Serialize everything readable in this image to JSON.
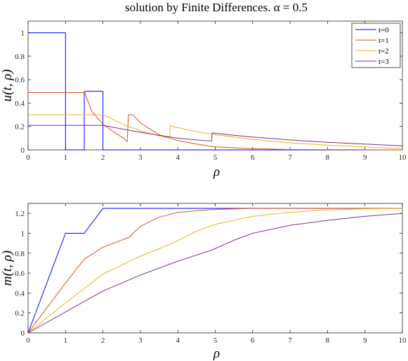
{
  "title": "solution by Finite Differences.  α = 0.5",
  "chart_data": [
    {
      "type": "line",
      "xlabel": "ρ",
      "ylabel": "u(t, ρ)",
      "xlim": [
        0,
        10
      ],
      "ylim": [
        0,
        1.1
      ],
      "xticks": [
        0,
        1,
        2,
        3,
        4,
        5,
        6,
        7,
        8,
        9,
        10
      ],
      "yticks": [
        0,
        0.2,
        0.4,
        0.6,
        0.8,
        1
      ],
      "legend_position": "top-right",
      "series": [
        {
          "name": "t=0",
          "color": "#0000ff",
          "points": [
            [
              0,
              1
            ],
            [
              1,
              1
            ],
            [
              1,
              0
            ],
            [
              1.5,
              0
            ],
            [
              1.5,
              0.5
            ],
            [
              2,
              0.5
            ],
            [
              2,
              0
            ],
            [
              10,
              0
            ]
          ]
        },
        {
          "name": "t=1",
          "color": "#d95319",
          "points": [
            [
              0,
              0.49
            ],
            [
              1.5,
              0.49
            ],
            [
              1.5,
              0.5
            ],
            [
              1.7,
              0.33
            ],
            [
              2.0,
              0.22
            ],
            [
              2.3,
              0.15
            ],
            [
              2.55,
              0.1
            ],
            [
              2.65,
              0.07
            ],
            [
              2.68,
              0.3
            ],
            [
              2.8,
              0.3
            ],
            [
              3.0,
              0.23
            ],
            [
              3.5,
              0.13
            ],
            [
              4.0,
              0.08
            ],
            [
              4.5,
              0.05
            ],
            [
              5.0,
              0.025
            ],
            [
              6.0,
              0.01
            ],
            [
              7.0,
              0.003
            ],
            [
              10,
              0
            ]
          ]
        },
        {
          "name": "t=2",
          "color": "#edb120",
          "points": [
            [
              0,
              0.3
            ],
            [
              2.0,
              0.3
            ],
            [
              2.2,
              0.27
            ],
            [
              2.6,
              0.21
            ],
            [
              2.95,
              0.17
            ],
            [
              3.0,
              0.16
            ],
            [
              3.5,
              0.12
            ],
            [
              3.78,
              0.1
            ],
            [
              3.8,
              0.205
            ],
            [
              4.0,
              0.19
            ],
            [
              4.5,
              0.155
            ],
            [
              5,
              0.13
            ],
            [
              6,
              0.09
            ],
            [
              7,
              0.06
            ],
            [
              8,
              0.04
            ],
            [
              9,
              0.025
            ],
            [
              10,
              0.01
            ]
          ]
        },
        {
          "name": "t=3",
          "color": "#7e2f8e",
          "points": [
            [
              0,
              0.21
            ],
            [
              2.0,
              0.21
            ],
            [
              2.5,
              0.18
            ],
            [
              3,
              0.15
            ],
            [
              3.5,
              0.125
            ],
            [
              4,
              0.1
            ],
            [
              4.5,
              0.085
            ],
            [
              4.9,
              0.075
            ],
            [
              4.92,
              0.145
            ],
            [
              5.5,
              0.125
            ],
            [
              6,
              0.11
            ],
            [
              7,
              0.085
            ],
            [
              8,
              0.065
            ],
            [
              9,
              0.05
            ],
            [
              10,
              0.035
            ]
          ]
        }
      ]
    },
    {
      "type": "line",
      "xlabel": "ρ",
      "ylabel": "m(t, ρ)",
      "xlim": [
        0,
        10
      ],
      "ylim": [
        0,
        1.3
      ],
      "xticks": [
        0,
        1,
        2,
        3,
        4,
        5,
        6,
        7,
        8,
        9,
        10
      ],
      "yticks": [
        0,
        0.2,
        0.4,
        0.6,
        0.8,
        1,
        1.2
      ],
      "series": [
        {
          "name": "t=0",
          "color": "#0000ff",
          "points": [
            [
              0,
              0
            ],
            [
              1,
              1
            ],
            [
              1.5,
              1
            ],
            [
              2,
              1.25
            ],
            [
              10,
              1.25
            ]
          ]
        },
        {
          "name": "t=1",
          "color": "#d95319",
          "points": [
            [
              0,
              0
            ],
            [
              0.5,
              0.25
            ],
            [
              1,
              0.5
            ],
            [
              1.5,
              0.74
            ],
            [
              2,
              0.86
            ],
            [
              2.7,
              0.96
            ],
            [
              3,
              1.07
            ],
            [
              3.5,
              1.16
            ],
            [
              4,
              1.21
            ],
            [
              5,
              1.24
            ],
            [
              6,
              1.25
            ],
            [
              10,
              1.25
            ]
          ]
        },
        {
          "name": "t=2",
          "color": "#edb120",
          "points": [
            [
              0,
              0
            ],
            [
              1,
              0.3
            ],
            [
              2,
              0.59
            ],
            [
              3,
              0.77
            ],
            [
              3.8,
              0.89
            ],
            [
              4.5,
              1.02
            ],
            [
              5,
              1.09
            ],
            [
              6,
              1.17
            ],
            [
              7,
              1.21
            ],
            [
              8,
              1.235
            ],
            [
              9,
              1.245
            ],
            [
              10,
              1.25
            ]
          ]
        },
        {
          "name": "t=3",
          "color": "#7e2f8e",
          "points": [
            [
              0,
              0
            ],
            [
              1,
              0.21
            ],
            [
              2,
              0.42
            ],
            [
              3,
              0.58
            ],
            [
              4,
              0.72
            ],
            [
              4.9,
              0.83
            ],
            [
              5.5,
              0.93
            ],
            [
              6,
              1.0
            ],
            [
              7,
              1.08
            ],
            [
              8,
              1.13
            ],
            [
              9,
              1.17
            ],
            [
              10,
              1.2
            ]
          ]
        }
      ]
    }
  ]
}
